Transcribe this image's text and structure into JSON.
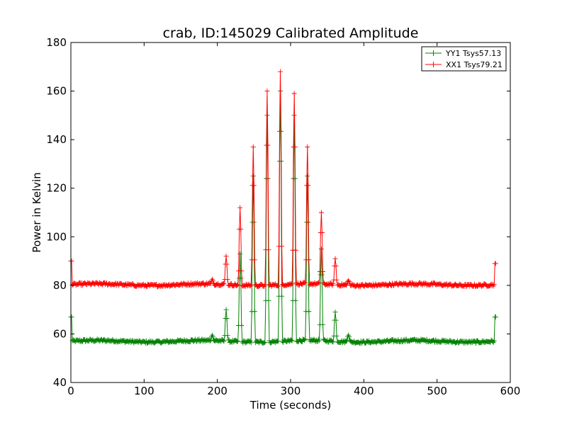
{
  "chart_data": {
    "type": "line",
    "title": "crab, ID:145029 Calibrated Amplitude",
    "xlabel": "Time (seconds)",
    "ylabel": "Power in Kelvin",
    "xlim": [
      0,
      600
    ],
    "ylim": [
      40,
      180
    ],
    "x_ticks": [
      "0",
      "100",
      "200",
      "300",
      "400",
      "500",
      "600"
    ],
    "y_ticks": [
      "40",
      "60",
      "80",
      "100",
      "120",
      "140",
      "160",
      "180"
    ],
    "grid": false,
    "legend_position": "top-right",
    "marker": "plus",
    "series": [
      {
        "name": "YY1 Tsys57.13",
        "color": "#008000",
        "baseline": 57.0,
        "start_spike": 67,
        "end_spike": 67,
        "peaks": [
          {
            "x": 193,
            "y": 59.5
          },
          {
            "x": 212,
            "y": 70
          },
          {
            "x": 231,
            "y": 93
          },
          {
            "x": 249,
            "y": 125
          },
          {
            "x": 268,
            "y": 150
          },
          {
            "x": 286,
            "y": 160
          },
          {
            "x": 305,
            "y": 150
          },
          {
            "x": 323,
            "y": 125
          },
          {
            "x": 342,
            "y": 95
          },
          {
            "x": 361,
            "y": 69
          },
          {
            "x": 379,
            "y": 59.5
          }
        ]
      },
      {
        "name": "XX1 Tsys79.21",
        "color": "#ff0000",
        "baseline": 80.3,
        "start_spike": 90,
        "end_spike": 89,
        "peaks": [
          {
            "x": 193,
            "y": 82.5
          },
          {
            "x": 212,
            "y": 92
          },
          {
            "x": 231,
            "y": 112
          },
          {
            "x": 249,
            "y": 137
          },
          {
            "x": 268,
            "y": 160
          },
          {
            "x": 286,
            "y": 168
          },
          {
            "x": 305,
            "y": 159
          },
          {
            "x": 323,
            "y": 137
          },
          {
            "x": 342,
            "y": 110
          },
          {
            "x": 361,
            "y": 91
          },
          {
            "x": 379,
            "y": 82
          }
        ]
      }
    ],
    "x_range": [
      0,
      580
    ]
  }
}
